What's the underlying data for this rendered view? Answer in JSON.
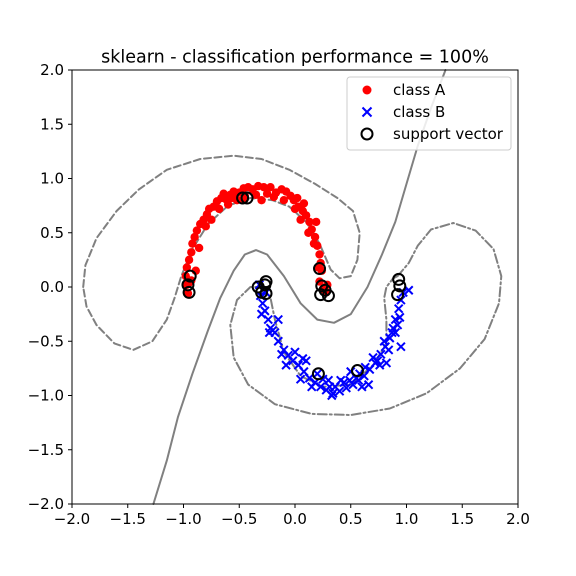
{
  "chart_data": {
    "type": "scatter",
    "title": "sklearn - classification performance = 100%",
    "xlabel": "",
    "ylabel": "",
    "xlim": [
      -2.0,
      2.0
    ],
    "ylim": [
      -2.0,
      2.0
    ],
    "xticks": [
      "−2.0",
      "−1.5",
      "−1.0",
      "−0.5",
      "0.0",
      "0.5",
      "1.0",
      "1.5",
      "2.0"
    ],
    "yticks": [
      "−2.0",
      "−1.5",
      "−1.0",
      "−0.5",
      "0.0",
      "0.5",
      "1.0",
      "1.5",
      "2.0"
    ],
    "grid": false,
    "legend_position": "top-right",
    "colors": {
      "class_a": "#ff0000",
      "class_b": "#0000ff",
      "support": "#000000",
      "boundary": "#808080"
    },
    "series": [
      {
        "name": "class A",
        "marker": "circle",
        "points": [
          [
            -0.97,
            0.02
          ],
          [
            -0.98,
            0.1
          ],
          [
            -0.97,
            0.18
          ],
          [
            -0.95,
            0.25
          ],
          [
            -0.93,
            0.32
          ],
          [
            -0.92,
            0.4
          ],
          [
            -0.9,
            0.46
          ],
          [
            -0.88,
            0.52
          ],
          [
            -0.85,
            0.58
          ],
          [
            -0.82,
            0.62
          ],
          [
            -0.79,
            0.67
          ],
          [
            -0.77,
            0.72
          ],
          [
            -0.73,
            0.74
          ],
          [
            -0.7,
            0.79
          ],
          [
            -0.66,
            0.82
          ],
          [
            -0.62,
            0.81
          ],
          [
            -0.58,
            0.85
          ],
          [
            -0.55,
            0.88
          ],
          [
            -0.5,
            0.87
          ],
          [
            -0.46,
            0.91
          ],
          [
            -0.42,
            0.92
          ],
          [
            -0.38,
            0.9
          ],
          [
            -0.33,
            0.93
          ],
          [
            -0.28,
            0.92
          ],
          [
            -0.22,
            0.92
          ],
          [
            -0.17,
            0.87
          ],
          [
            -0.12,
            0.9
          ],
          [
            -0.08,
            0.88
          ],
          [
            -0.04,
            0.84
          ],
          [
            -0.01,
            0.8
          ],
          [
            0.03,
            0.74
          ],
          [
            0.07,
            0.7
          ],
          [
            0.1,
            0.66
          ],
          [
            0.13,
            0.6
          ],
          [
            0.15,
            0.53
          ],
          [
            0.18,
            0.46
          ],
          [
            0.2,
            0.38
          ],
          [
            0.22,
            0.3
          ],
          [
            0.23,
            0.22
          ],
          [
            0.24,
            0.15
          ],
          [
            -0.8,
            0.56
          ],
          [
            -0.75,
            0.62
          ],
          [
            -0.68,
            0.72
          ],
          [
            -0.6,
            0.76
          ],
          [
            -0.47,
            0.8
          ],
          [
            -0.35,
            0.85
          ],
          [
            -0.25,
            0.86
          ],
          [
            -0.1,
            0.8
          ],
          [
            0.0,
            0.72
          ],
          [
            0.05,
            0.62
          ],
          [
            0.12,
            0.5
          ],
          [
            0.17,
            0.4
          ],
          [
            0.22,
            0.05
          ],
          [
            0.25,
            -0.02
          ],
          [
            0.28,
            -0.05
          ],
          [
            -0.96,
            -0.06
          ],
          [
            -0.93,
            0.06
          ],
          [
            -0.89,
            0.15
          ],
          [
            -0.86,
            0.36
          ],
          [
            -0.64,
            0.86
          ],
          [
            -0.52,
            0.8
          ],
          [
            -0.45,
            0.84
          ],
          [
            -0.3,
            0.8
          ],
          [
            -0.19,
            0.83
          ],
          [
            0.02,
            0.82
          ],
          [
            0.08,
            0.77
          ],
          [
            0.19,
            0.6
          ],
          [
            -0.54,
            0.82
          ],
          [
            -0.57,
            0.82
          ],
          [
            0.21,
            0.18
          ],
          [
            0.29,
            0.02
          ],
          [
            -0.95,
            0.04
          ]
        ]
      },
      {
        "name": "class B",
        "marker": "x",
        "points": [
          [
            -0.32,
            0.02
          ],
          [
            -0.31,
            -0.08
          ],
          [
            -0.29,
            -0.15
          ],
          [
            -0.27,
            -0.22
          ],
          [
            -0.24,
            -0.3
          ],
          [
            -0.22,
            -0.38
          ],
          [
            -0.18,
            -0.42
          ],
          [
            -0.15,
            -0.5
          ],
          [
            -0.1,
            -0.58
          ],
          [
            -0.06,
            -0.63
          ],
          [
            -0.02,
            -0.68
          ],
          [
            0.03,
            -0.72
          ],
          [
            0.08,
            -0.78
          ],
          [
            0.13,
            -0.84
          ],
          [
            0.18,
            -0.88
          ],
          [
            0.23,
            -0.92
          ],
          [
            0.28,
            -0.95
          ],
          [
            0.34,
            -0.98
          ],
          [
            0.4,
            -0.96
          ],
          [
            0.46,
            -0.93
          ],
          [
            0.52,
            -0.9
          ],
          [
            0.57,
            -0.86
          ],
          [
            0.62,
            -0.82
          ],
          [
            0.67,
            -0.76
          ],
          [
            0.72,
            -0.7
          ],
          [
            0.77,
            -0.62
          ],
          [
            0.81,
            -0.55
          ],
          [
            0.85,
            -0.47
          ],
          [
            0.88,
            -0.38
          ],
          [
            0.9,
            -0.3
          ],
          [
            0.93,
            -0.2
          ],
          [
            0.95,
            -0.12
          ],
          [
            0.97,
            -0.05
          ],
          [
            1.02,
            -0.03
          ],
          [
            -0.26,
            -0.05
          ],
          [
            -0.2,
            -0.4
          ],
          [
            0.0,
            -0.6
          ],
          [
            0.1,
            -0.68
          ],
          [
            0.2,
            -0.8
          ],
          [
            0.3,
            -0.86
          ],
          [
            0.44,
            -0.88
          ],
          [
            0.58,
            -0.8
          ],
          [
            0.7,
            -0.65
          ],
          [
            0.8,
            -0.5
          ],
          [
            0.9,
            -0.42
          ],
          [
            -0.3,
            -0.25
          ],
          [
            -0.12,
            -0.62
          ],
          [
            0.05,
            -0.85
          ],
          [
            0.25,
            -0.85
          ],
          [
            0.36,
            -0.92
          ],
          [
            0.49,
            -0.86
          ],
          [
            0.63,
            -0.74
          ],
          [
            0.74,
            -0.68
          ],
          [
            0.84,
            -0.58
          ],
          [
            0.92,
            -0.35
          ],
          [
            0.6,
            -0.92
          ],
          [
            -0.08,
            -0.72
          ],
          [
            0.15,
            -0.92
          ],
          [
            0.33,
            -1.0
          ],
          [
            0.66,
            -0.9
          ],
          [
            0.87,
            -0.42
          ],
          [
            0.94,
            -0.28
          ],
          [
            -0.23,
            -0.42
          ],
          [
            0.41,
            -0.86
          ],
          [
            0.76,
            -0.72
          ],
          [
            0.55,
            -0.84
          ],
          [
            -0.15,
            -0.3
          ],
          [
            0.07,
            -0.66
          ],
          [
            0.5,
            -0.78
          ],
          [
            0.82,
            -0.7
          ],
          [
            0.95,
            -0.55
          ],
          [
            0.31,
            -0.92
          ]
        ]
      },
      {
        "name": "support vector",
        "marker": "ring",
        "points": [
          [
            -0.94,
            0.1
          ],
          [
            -0.96,
            0.02
          ],
          [
            -0.95,
            -0.05
          ],
          [
            -0.47,
            0.82
          ],
          [
            -0.43,
            0.82
          ],
          [
            0.22,
            0.17
          ],
          [
            0.24,
            0.01
          ],
          [
            0.27,
            -0.03
          ],
          [
            0.3,
            -0.08
          ],
          [
            0.23,
            -0.07
          ],
          [
            -0.33,
            0.0
          ],
          [
            -0.27,
            0.02
          ],
          [
            -0.26,
            0.05
          ],
          [
            -0.3,
            -0.05
          ],
          [
            -0.26,
            -0.06
          ],
          [
            0.21,
            -0.8
          ],
          [
            0.56,
            -0.77
          ],
          [
            0.93,
            0.07
          ],
          [
            0.94,
            0.01
          ],
          [
            0.92,
            -0.07
          ]
        ]
      }
    ],
    "boundaries": [
      {
        "level": "decision",
        "style": "solid",
        "points": [
          [
            -1.27,
            -2.0
          ],
          [
            -1.15,
            -1.6
          ],
          [
            -1.05,
            -1.2
          ],
          [
            -0.92,
            -0.8
          ],
          [
            -0.78,
            -0.4
          ],
          [
            -0.67,
            -0.1
          ],
          [
            -0.55,
            0.15
          ],
          [
            -0.45,
            0.3
          ],
          [
            -0.35,
            0.34
          ],
          [
            -0.25,
            0.3
          ],
          [
            -0.1,
            0.1
          ],
          [
            0.05,
            -0.15
          ],
          [
            0.2,
            -0.3
          ],
          [
            0.35,
            -0.33
          ],
          [
            0.5,
            -0.25
          ],
          [
            0.65,
            0.0
          ],
          [
            0.78,
            0.3
          ],
          [
            0.9,
            0.6
          ],
          [
            1.0,
            0.95
          ],
          [
            1.1,
            1.3
          ],
          [
            1.22,
            1.65
          ],
          [
            1.35,
            2.0
          ]
        ]
      },
      {
        "level": "margin-a",
        "style": "dashed",
        "points": [
          [
            -1.9,
            0.0
          ],
          [
            -1.88,
            0.2
          ],
          [
            -1.78,
            0.45
          ],
          [
            -1.6,
            0.7
          ],
          [
            -1.4,
            0.9
          ],
          [
            -1.15,
            1.08
          ],
          [
            -0.85,
            1.18
          ],
          [
            -0.55,
            1.21
          ],
          [
            -0.3,
            1.18
          ],
          [
            -0.05,
            1.08
          ],
          [
            0.18,
            0.95
          ],
          [
            0.38,
            0.82
          ],
          [
            0.52,
            0.7
          ],
          [
            0.58,
            0.5
          ],
          [
            0.56,
            0.25
          ],
          [
            0.5,
            0.1
          ],
          [
            0.4,
            0.08
          ],
          [
            0.32,
            0.16
          ],
          [
            0.22,
            0.4
          ],
          [
            0.1,
            0.6
          ],
          [
            -0.05,
            0.74
          ],
          [
            -0.2,
            0.8
          ],
          [
            -0.4,
            0.82
          ],
          [
            -0.6,
            0.75
          ],
          [
            -0.78,
            0.58
          ],
          [
            -0.92,
            0.35
          ],
          [
            -1.02,
            0.1
          ],
          [
            -1.08,
            -0.1
          ],
          [
            -1.15,
            -0.3
          ],
          [
            -1.28,
            -0.5
          ],
          [
            -1.45,
            -0.58
          ],
          [
            -1.62,
            -0.52
          ],
          [
            -1.78,
            -0.35
          ],
          [
            -1.87,
            -0.18
          ],
          [
            -1.9,
            0.0
          ]
        ]
      },
      {
        "level": "margin-b",
        "style": "dashdot",
        "points": [
          [
            0.92,
            0.1
          ],
          [
            0.88,
            0.08
          ],
          [
            0.82,
            0.0
          ],
          [
            0.8,
            -0.1
          ],
          [
            0.82,
            -0.3
          ],
          [
            0.82,
            -0.52
          ],
          [
            0.7,
            -0.72
          ],
          [
            0.5,
            -0.9
          ],
          [
            0.25,
            -0.92
          ],
          [
            0.05,
            -0.82
          ],
          [
            -0.1,
            -0.6
          ],
          [
            -0.18,
            -0.3
          ],
          [
            -0.22,
            -0.1
          ],
          [
            -0.3,
            0.0
          ],
          [
            -0.4,
            0.0
          ],
          [
            -0.52,
            -0.12
          ],
          [
            -0.58,
            -0.35
          ],
          [
            -0.55,
            -0.65
          ],
          [
            -0.42,
            -0.9
          ],
          [
            -0.18,
            -1.08
          ],
          [
            0.15,
            -1.17
          ],
          [
            0.5,
            -1.18
          ],
          [
            0.85,
            -1.12
          ],
          [
            1.18,
            -0.98
          ],
          [
            1.48,
            -0.75
          ],
          [
            1.7,
            -0.48
          ],
          [
            1.83,
            -0.15
          ],
          [
            1.85,
            0.1
          ],
          [
            1.78,
            0.35
          ],
          [
            1.62,
            0.52
          ],
          [
            1.42,
            0.59
          ],
          [
            1.22,
            0.53
          ],
          [
            1.1,
            0.38
          ],
          [
            1.02,
            0.22
          ],
          [
            0.92,
            0.1
          ]
        ]
      }
    ]
  }
}
